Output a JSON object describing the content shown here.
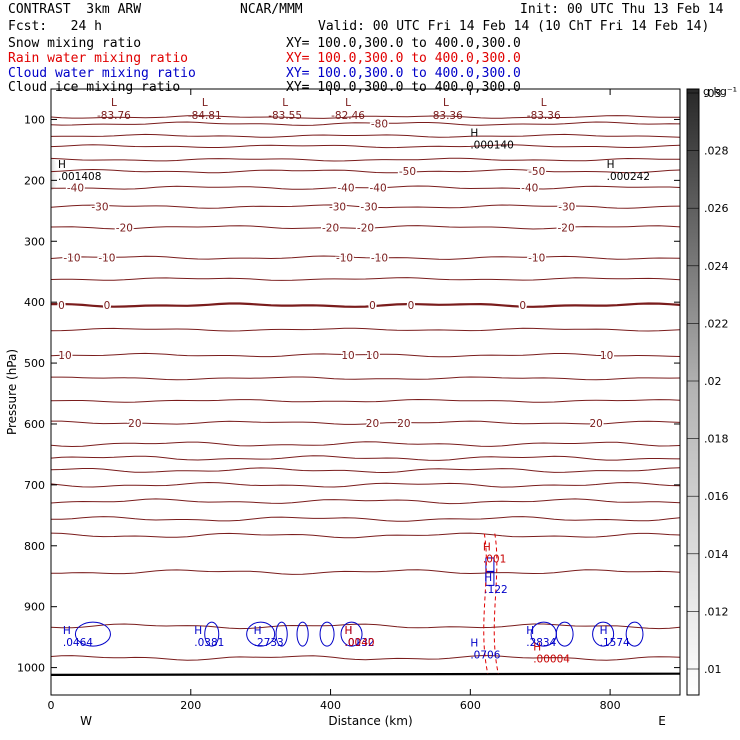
{
  "header": {
    "title": "CONTRAST  3km ARW",
    "center": "NCAR/MMM",
    "init": "Init: 00 UTC Thu 13 Feb 14",
    "fcst": "Fcst:   24 h",
    "valid": "Valid: 00 UTC Fri 14 Feb 14 (10 ChT Fri 14 Feb 14)",
    "fields": [
      {
        "name": "Snow mixing ratio",
        "xy": "XY= 100.0,300.0 to 400.0,300.0",
        "color": "#000000"
      },
      {
        "name": "Rain water mixing ratio",
        "xy": "XY= 100.0,300.0 to 400.0,300.0",
        "color": "#e00000"
      },
      {
        "name": "Cloud water mixing ratio",
        "xy": "XY= 100.0,300.0 to 400.0,300.0",
        "color": "#0000c8"
      },
      {
        "name": "Cloud ice mixing ratio",
        "xy": "XY= 100.0,300.0 to 400.0,300.0",
        "color": "#000000"
      }
    ]
  },
  "chart_data": {
    "type": "cross-section contour",
    "xlabel": "Distance (km)",
    "ylabel": "Pressure (hPa)",
    "xlim": [
      0,
      900
    ],
    "ylim": [
      1045,
      50
    ],
    "x_ticks": [
      0,
      200,
      400,
      600,
      800
    ],
    "y_ticks": [
      100,
      200,
      300,
      400,
      500,
      600,
      700,
      800,
      900,
      1000
    ],
    "x_end_labels": {
      "left": "W",
      "right": "E"
    },
    "colorbar": {
      "unit": "g kg⁻¹",
      "labels": [
        ".01",
        ".012",
        ".014",
        ".016",
        ".018",
        ".02",
        ".022",
        ".024",
        ".026",
        ".028",
        ".03"
      ]
    },
    "temperature_contours": [
      {
        "value": -80,
        "label": "-80",
        "p": 107,
        "label_x": [
          470
        ]
      },
      {
        "value": -50,
        "label": "-50",
        "p": 185,
        "label_x": [
          510,
          695
        ]
      },
      {
        "value": -40,
        "label": "-40",
        "p": 212,
        "label_x": [
          35,
          422,
          468,
          685
        ]
      },
      {
        "value": -30,
        "label": "-30",
        "p": 243,
        "label_x": [
          70,
          410,
          455,
          738
        ]
      },
      {
        "value": -20,
        "label": "-20",
        "p": 277,
        "label_x": [
          105,
          400,
          450,
          737
        ]
      },
      {
        "value": -10,
        "label": "-10",
        "p": 327,
        "label_x": [
          30,
          80,
          420,
          470,
          695
        ]
      },
      {
        "value": 0,
        "label": "0",
        "p": 405,
        "label_x": [
          15,
          80,
          460,
          515,
          675
        ]
      },
      {
        "value": 10,
        "label": "10",
        "p": 487,
        "label_x": [
          20,
          425,
          460,
          795
        ]
      },
      {
        "value": 20,
        "label": "20",
        "p": 598,
        "label_x": [
          120,
          460,
          505,
          780
        ]
      }
    ],
    "unlabeled_contour_pressures": [
      96,
      127,
      144,
      166,
      362,
      445,
      525,
      562,
      633,
      656,
      676,
      700,
      727,
      756,
      783,
      843,
      932,
      984
    ],
    "low_centers": [
      {
        "x": 90,
        "p": 78,
        "value": "-83.76"
      },
      {
        "x": 220,
        "p": 78,
        "value": "-84.81"
      },
      {
        "x": 335,
        "p": 78,
        "value": "-83.55"
      },
      {
        "x": 425,
        "p": 78,
        "value": "-82.46"
      },
      {
        "x": 565,
        "p": 78,
        "value": "-83.36"
      },
      {
        "x": 705,
        "p": 78,
        "value": "-83.36"
      }
    ],
    "high_centers": [
      {
        "x": 600,
        "p": 128,
        "value": ".000140",
        "color": "#000000"
      },
      {
        "x": 10,
        "p": 180,
        "value": ".001408",
        "color": "#000000"
      },
      {
        "x": 795,
        "p": 180,
        "value": ".000242",
        "color": "#000000"
      },
      {
        "x": 618,
        "p": 808,
        "value": ".001",
        "color": "#c80000"
      },
      {
        "x": 620,
        "p": 858,
        "value": ".122",
        "color": "#0000c8"
      },
      {
        "x": 17,
        "p": 945,
        "value": ".0464",
        "color": "#0000c8"
      },
      {
        "x": 205,
        "p": 945,
        "value": ".0381",
        "color": "#0000c8"
      },
      {
        "x": 290,
        "p": 945,
        "value": ".2733",
        "color": "#0000c8"
      },
      {
        "x": 420,
        "p": 945,
        "value": ".0132",
        "color": "#0000c8"
      },
      {
        "x": 420,
        "p": 945,
        "value": ".0040",
        "color": "#c80000"
      },
      {
        "x": 600,
        "p": 965,
        "value": ".0706",
        "color": "#0000c8"
      },
      {
        "x": 680,
        "p": 945,
        "value": ".2834",
        "color": "#0000c8"
      },
      {
        "x": 690,
        "p": 972,
        "value": ".00004",
        "color": "#c80000"
      },
      {
        "x": 785,
        "p": 945,
        "value": ".1574",
        "color": "#0000c8"
      }
    ]
  }
}
